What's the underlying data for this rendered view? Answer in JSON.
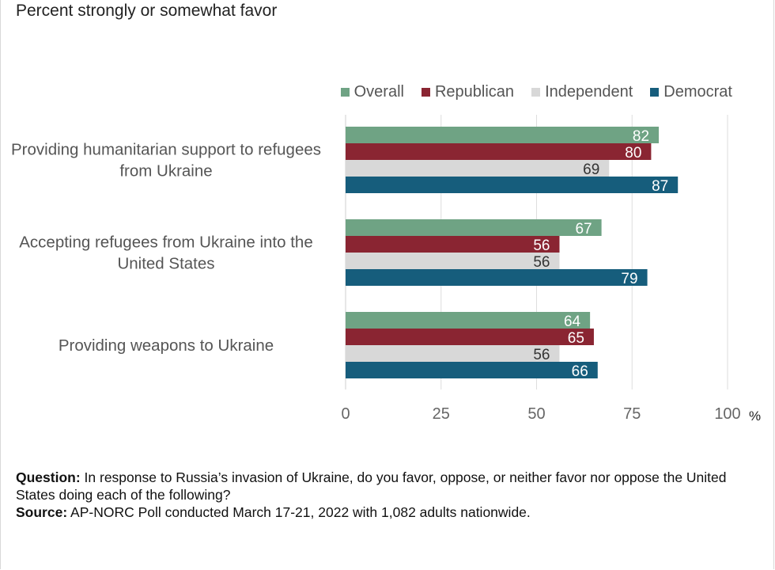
{
  "subtitle": "Percent strongly or somewhat favor",
  "legend": [
    {
      "label": "Overall",
      "color": "#6fa384"
    },
    {
      "label": "Republican",
      "color": "#8a2532"
    },
    {
      "label": "Independent",
      "color": "#d8d8d8"
    },
    {
      "label": "Democrat",
      "color": "#165d7c"
    }
  ],
  "chart_data": {
    "type": "bar",
    "orientation": "horizontal",
    "categories": [
      [
        "Providing humanitarian support to refugees",
        "from Ukraine"
      ],
      [
        "Accepting refugees from Ukraine into the",
        "United States"
      ],
      [
        "Providing weapons to Ukraine"
      ]
    ],
    "series": [
      {
        "name": "Overall",
        "values": [
          82,
          67,
          64
        ],
        "color": "#6fa384",
        "label_color": "#ffffff"
      },
      {
        "name": "Republican",
        "values": [
          80,
          56,
          65
        ],
        "color": "#8a2532",
        "label_color": "#ffffff"
      },
      {
        "name": "Independent",
        "values": [
          69,
          56,
          56
        ],
        "color": "#d8d8d8",
        "label_color": "#333333"
      },
      {
        "name": "Democrat",
        "values": [
          87,
          79,
          66
        ],
        "color": "#165d7c",
        "label_color": "#ffffff"
      }
    ],
    "xlim": [
      0,
      100
    ],
    "xticks": [
      0,
      25,
      50,
      75,
      100
    ],
    "xunit": "%",
    "grid": true,
    "legend_position": "top-right"
  },
  "notes": {
    "question_label": "Question:",
    "question_text": " In response to Russia’s invasion of Ukraine, do you favor, oppose, or neither favor nor oppose the United States doing each of the following?",
    "source_label": "Source:",
    "source_text": " AP-NORC Poll conducted March 17-21, 2022 with 1,082 adults nationwide."
  }
}
